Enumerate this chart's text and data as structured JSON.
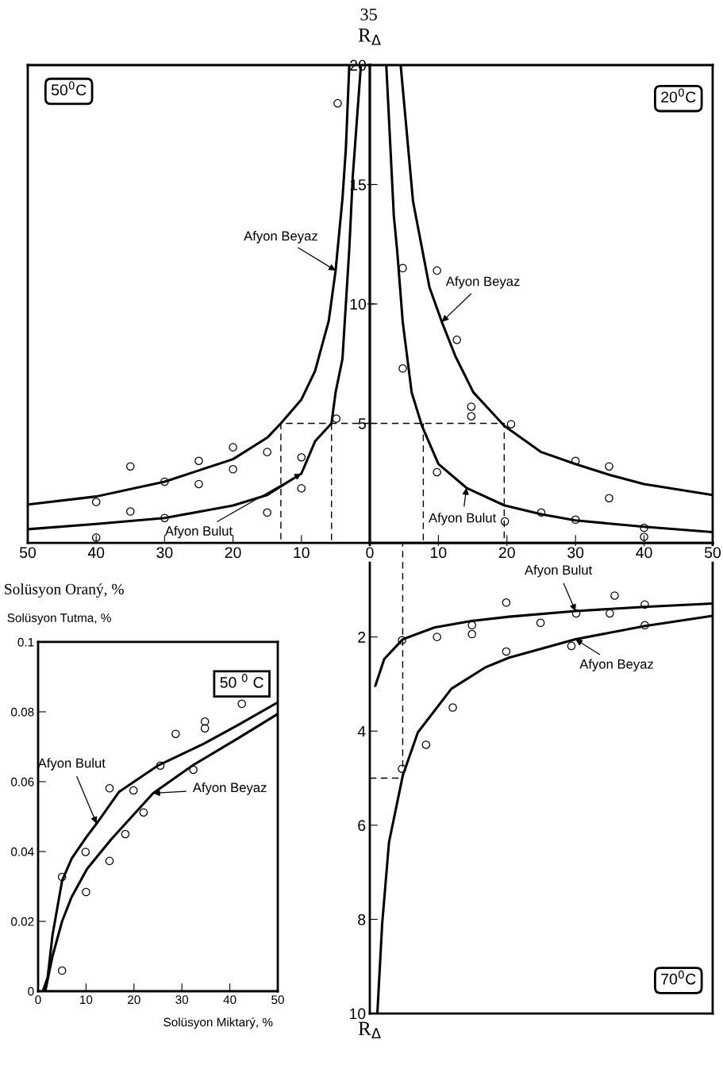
{
  "chart_data": [
    {
      "type": "line",
      "title": null,
      "ylabel": "R$_{Δ}$",
      "xlabel": "Solüsyon Oraný, %",
      "annotations": [
        "35",
        "50$^{0}$C"
      ],
      "xlim": [
        50,
        0
      ],
      "ylim": [
        0,
        20
      ],
      "xticks": [
        50,
        40,
        30,
        20,
        10
      ],
      "yticks": [
        5,
        10,
        15,
        20
      ],
      "series": [
        {
          "name": "Afyon Beyaz",
          "color": "#000000",
          "line_style": "solid",
          "x": [
            50,
            40,
            30,
            20,
            15,
            13,
            10,
            8,
            6,
            5,
            4,
            3.5,
            3
          ],
          "values": [
            1.6,
            1.94,
            2.56,
            3.5,
            4.4,
            5.0,
            6.0,
            7.2,
            9.3,
            11.4,
            14.4,
            16.5,
            20
          ]
        },
        {
          "name": "Afyon Bulut",
          "color": "#000000",
          "line_style": "solid",
          "x": [
            50,
            40,
            30,
            20,
            15,
            10,
            8,
            5.6,
            5,
            4,
            3,
            2.5,
            1.3
          ],
          "values": [
            0.57,
            0.79,
            1.04,
            1.56,
            2.0,
            2.9,
            4.25,
            5.0,
            6.3,
            7.7,
            12.3,
            15.3,
            20
          ]
        },
        {
          "type": "scatter",
          "color": "#000000",
          "marker": "circle",
          "x": [
            35,
            30,
            25,
            25,
            20,
            20,
            15,
            10,
            10,
            40,
            35,
            30,
            15,
            40,
            4.9,
            4.7
          ],
          "values": [
            3.2,
            2.56,
            3.43,
            2.46,
            4.0,
            3.08,
            3.8,
            3.58,
            2.28,
            1.71,
            1.31,
            1.04,
            1.27,
            0.22,
            5.2,
            18.4
          ]
        },
        {
          "color": "#000000",
          "line_style": "dashed",
          "x": [
            0,
            13,
            13,
            null,
            5.6,
            5.6
          ],
          "values": [
            5,
            5,
            0,
            null,
            5,
            0
          ]
        }
      ]
    },
    {
      "type": "line",
      "annotations": [
        "20$^{0}$C"
      ],
      "xlim": [
        0,
        50
      ],
      "ylim": [
        0,
        20
      ],
      "xticks": [
        0,
        10,
        20,
        30,
        40,
        50
      ],
      "yticks": [
        5,
        10,
        15,
        20
      ],
      "tick_labels": "x",
      "series": [
        {
          "name": "Afyon Beyaz",
          "color": "#000000",
          "line_style": "solid",
          "x": [
            4.5,
            6.3,
            8.7,
            10.5,
            12.5,
            15.1,
            19.6,
            25,
            30,
            35,
            40,
            50
          ],
          "values": [
            20,
            14.3,
            10.7,
            9.25,
            7.8,
            6.3,
            4.9,
            3.8,
            3.3,
            2.84,
            2.46,
            2.0
          ]
        },
        {
          "name": "Afyon Bulut",
          "color": "#000000",
          "line_style": "solid",
          "x": [
            2.4,
            3.5,
            4,
            4.8,
            6.1,
            7.6,
            10,
            14.1,
            19.6,
            25,
            30,
            40,
            50
          ],
          "values": [
            20,
            13.7,
            12.2,
            9.25,
            6.3,
            4.9,
            3.3,
            2.3,
            1.57,
            1.2,
            0.94,
            0.67,
            0.45
          ]
        },
        {
          "type": "scatter",
          "color": "#000000",
          "marker": "circle",
          "x": [
            4.8,
            9.8,
            12.7,
            4.8,
            14.8,
            14.8,
            20.6,
            30,
            34.9,
            9.8,
            34.9,
            25,
            30,
            19.7,
            40,
            40
          ],
          "values": [
            11.5,
            11.4,
            8.5,
            7.3,
            5.7,
            5.3,
            4.97,
            3.43,
            3.2,
            2.96,
            1.87,
            1.27,
            0.97,
            0.9,
            0.63,
            0.25
          ]
        },
        {
          "color": "#000000",
          "line_style": "dashed",
          "x": [
            0,
            19.6,
            19.6,
            null,
            7.8,
            7.8
          ],
          "values": [
            5,
            5,
            0,
            null,
            5,
            0
          ]
        }
      ]
    },
    {
      "type": "line",
      "xlabel": "Solüsyon Miktarý, %",
      "ylabel": "Solüsyon Tutma, %",
      "annotations": [
        "50 $^{0}$ C"
      ],
      "xlim": [
        0,
        50
      ],
      "ylim": [
        0,
        0.1
      ],
      "xticks": [
        0,
        10,
        20,
        30,
        40,
        50
      ],
      "yticks": [
        0,
        0.02,
        0.04,
        0.06,
        0.08,
        0.1
      ],
      "series": [
        {
          "name": "Afyon Beyaz",
          "color": "#000000",
          "line_style": "solid",
          "x": [
            1.5,
            3,
            5,
            7,
            10.2,
            15.2,
            24,
            32.3,
            41.7,
            50
          ],
          "values": [
            0,
            0.01,
            0.02,
            0.027,
            0.035,
            0.0434,
            0.0567,
            0.0647,
            0.0724,
            0.0794
          ]
        },
        {
          "name": "Afyon Bulut",
          "color": "#000000",
          "line_style": "solid",
          "x": [
            1,
            2,
            3,
            5,
            7,
            10,
            12.2,
            16.9,
            25.1,
            34.5,
            41.7,
            50
          ],
          "values": [
            0,
            0.004,
            0.016,
            0.0316,
            0.038,
            0.044,
            0.048,
            0.0571,
            0.0647,
            0.0708,
            0.0762,
            0.0827
          ]
        },
        {
          "type": "scatter",
          "color": "#000000",
          "marker": "circle",
          "x": [
            9.9,
            14.9,
            14.9,
            18.2,
            19.9,
            22,
            25.5,
            28.7,
            32.4,
            34.8,
            34.8,
            42.5,
            5,
            10,
            5
          ],
          "values": [
            0.0399,
            0.0373,
            0.0581,
            0.045,
            0.0575,
            0.0512,
            0.0646,
            0.0737,
            0.0634,
            0.0772,
            0.0753,
            0.0823,
            0.0327,
            0.0284,
            0.0059
          ]
        }
      ]
    },
    {
      "type": "line",
      "ylabel": "R$_{Δ}$",
      "annotations": [
        "70$^{0}$C"
      ],
      "xlim": [
        0,
        50
      ],
      "ylim": [
        10,
        0
      ],
      "xticks": [
        0,
        10,
        20,
        30,
        40,
        50
      ],
      "yticks": [
        2,
        4,
        6,
        8,
        10
      ],
      "tick_labels": "y",
      "series": [
        {
          "name": "Afyon Beyaz",
          "color": "#000000",
          "line_style": "solid",
          "x": [
            1.1,
            1.8,
            2.8,
            4.8,
            7,
            11.9,
            16.8,
            20.3,
            30,
            40,
            50
          ],
          "values": [
            10,
            8.1,
            6.36,
            4.95,
            4.03,
            3.1,
            2.65,
            2.44,
            2.05,
            1.77,
            1.55
          ]
        },
        {
          "name": "Afyon Bulut",
          "color": "#000000",
          "line_style": "solid",
          "x": [
            0.8,
            2.1,
            4.8,
            9.4,
            14.8,
            20.3,
            30,
            40,
            50
          ],
          "values": [
            3.04,
            2.47,
            2.05,
            1.8,
            1.66,
            1.57,
            1.45,
            1.36,
            1.29
          ]
        },
        {
          "type": "scatter",
          "color": "#000000",
          "marker": "circle",
          "x": [
            4.7,
            9.8,
            14.9,
            14.9,
            19.9,
            24.9,
            30.1,
            35.7,
            35,
            40.1,
            40.1,
            19.9,
            29.4,
            12.1,
            8.2,
            4.7
          ],
          "values": [
            2.07,
            2.0,
            1.75,
            1.94,
            1.27,
            1.7,
            1.5,
            1.12,
            1.5,
            1.31,
            1.75,
            2.31,
            2.19,
            3.5,
            4.29,
            4.8
          ]
        },
        {
          "color": "#000000",
          "line_style": "dashed",
          "x": [
            0,
            4.8,
            4.8
          ],
          "values": [
            5,
            5,
            0
          ]
        }
      ]
    }
  ]
}
